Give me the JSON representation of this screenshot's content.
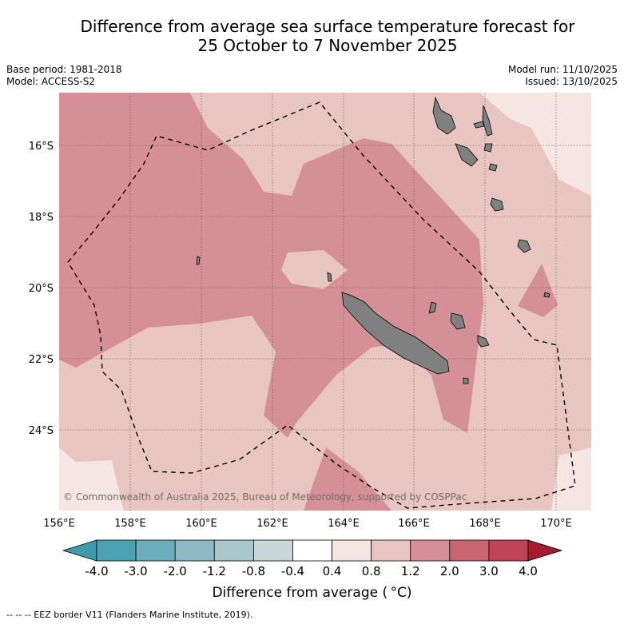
{
  "title_line1": "Difference from average sea surface temperature forecast for",
  "title_line2": "25 October to 7 November 2025",
  "base_period": "Base period: 1981-2018",
  "model": "Model: ACCESS-S2",
  "model_run": "Model run: 11/10/2025",
  "issued": "Issued: 13/10/2025",
  "copyright": "© Commonwealth of Australia 2025, Bureau of Meteorology, supported by COSPPac",
  "lon_labels": [
    "156°E",
    "158°E",
    "160°E",
    "162°E",
    "164°E",
    "166°E",
    "168°E",
    "170°E"
  ],
  "lat_labels": [
    "16°S",
    "18°S",
    "20°S",
    "22°S",
    "24°S"
  ],
  "colorbar": {
    "ticks": [
      "-4.0",
      "-3.0",
      "-2.0",
      "-1.2",
      "-0.8",
      "-0.4",
      "0.4",
      "0.8",
      "1.2",
      "2.0",
      "3.0",
      "4.0"
    ],
    "colors": [
      "#3f9aaa",
      "#4aa2b2",
      "#6cadbb",
      "#8eb8c4",
      "#aac8cc",
      "#c8d8da",
      "#ffffff",
      "#f5e5e3",
      "#e8c5c0",
      "#d58f97",
      "#c8656f",
      "#bf4556",
      "#a51c30"
    ],
    "title": "Difference from average ( °C)"
  },
  "legend_eez": "--  --  -- EEZ border V11 (Flanders Marine Institute, 2019).",
  "colors": {
    "light": "#e8c5c0",
    "vlight": "#f5e5e3",
    "medium": "#d58f97",
    "land": "#808080"
  }
}
